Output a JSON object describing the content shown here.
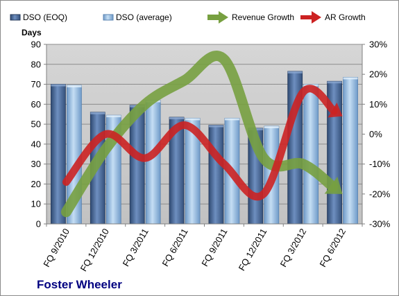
{
  "chart_data": {
    "type": "bar",
    "title": "Foster Wheeler",
    "ylabel": "Days",
    "categories": [
      "FQ 9/2010",
      "FQ 12/2010",
      "FQ 3/2011",
      "FQ 6/2011",
      "FQ 9/2011",
      "FQ 12/2011",
      "FQ 3/2012",
      "FQ 6/2012"
    ],
    "ylim": [
      0,
      90
    ],
    "yticks": [
      0,
      10,
      20,
      30,
      40,
      50,
      60,
      70,
      80,
      90
    ],
    "y2lim": [
      -0.3,
      0.3
    ],
    "y2ticks": [
      "-30%",
      "-20%",
      "-10%",
      "0%",
      "10%",
      "20%",
      "30%"
    ],
    "grid": "horizontal",
    "legend_position": "top",
    "series": [
      {
        "name": "DSO (EOQ)",
        "type": "bar",
        "axis": "left",
        "color": "#4f6f9f",
        "values": [
          70,
          56,
          59.5,
          53.5,
          49.5,
          48,
          76.5,
          71.5
        ]
      },
      {
        "name": "DSO (average)",
        "type": "bar",
        "axis": "left",
        "color": "#8fb8e0",
        "values": [
          69.5,
          54.5,
          62,
          53,
          53,
          49,
          70,
          73.5
        ]
      },
      {
        "name": "Revenue Growth",
        "type": "line-arrow",
        "axis": "right",
        "color": "#77a040",
        "values": [
          -0.26,
          -0.05,
          0.1,
          0.18,
          0.25,
          -0.08,
          -0.1,
          -0.2
        ]
      },
      {
        "name": "AR Growth",
        "type": "line-arrow",
        "axis": "right",
        "color": "#cc2222",
        "values": [
          -0.16,
          0.0,
          -0.08,
          0.03,
          -0.1,
          -0.2,
          0.14,
          0.06
        ]
      }
    ]
  }
}
